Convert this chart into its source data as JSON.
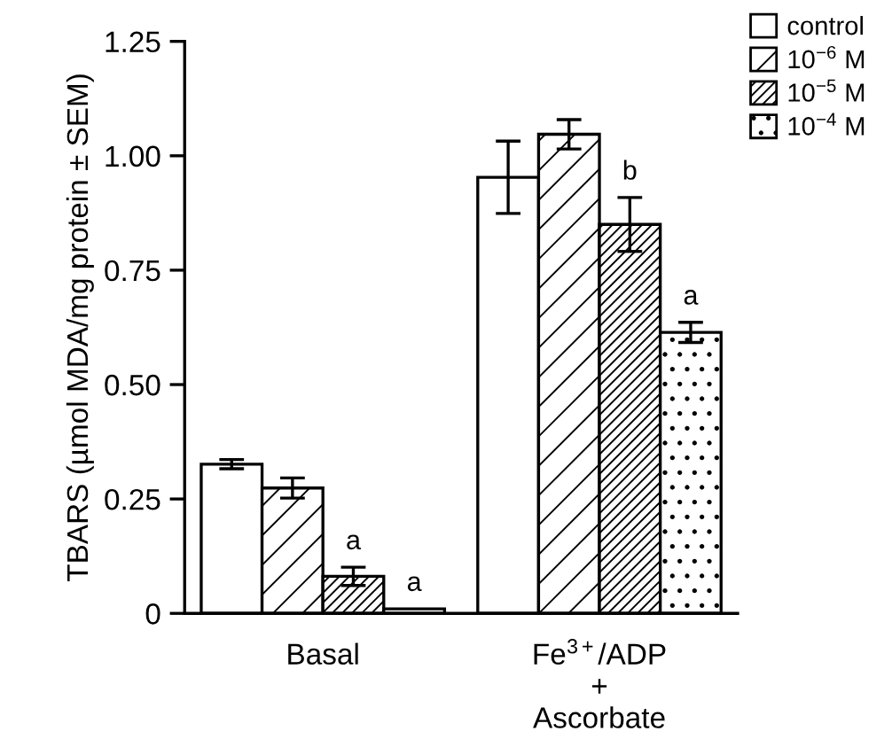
{
  "chart_data": {
    "type": "bar",
    "ylabel": "TBARS (µmol MDA/mg protein ± SEM)",
    "categories": [
      "Basal",
      "Fe$^{3+}$/ADP\n+\nAscorbate"
    ],
    "series": [
      {
        "name": "control",
        "color": "#ffffff",
        "values": [
          0.326,
          0.953
        ],
        "errors": [
          0.01,
          0.079
        ]
      },
      {
        "name": "10$^{−6}$ M",
        "color": "#000000",
        "values": [
          0.274,
          1.047
        ],
        "errors": [
          0.022,
          0.032
        ]
      },
      {
        "name": "10$^{−5}$ M",
        "color": "#000000",
        "values": [
          0.081,
          0.85
        ],
        "errors": [
          0.02,
          0.059
        ],
        "value_labels": [
          "a",
          "b"
        ]
      },
      {
        "name": "10$^{−4}$ M",
        "color": "#000000",
        "values": [
          0.01,
          0.614
        ],
        "errors": [
          null,
          0.022
        ],
        "value_labels": [
          "a",
          "a"
        ]
      }
    ],
    "ylim": [
      0,
      1.25
    ],
    "yticks": [
      {
        "value": 0,
        "label": "0"
      },
      0.25,
      {
        "value": 0.5,
        "label": "0.50"
      },
      0.75,
      {
        "value": 1.0,
        "label": "1.00"
      },
      1.25
    ],
    "grid": false,
    "legend": "top right"
  }
}
